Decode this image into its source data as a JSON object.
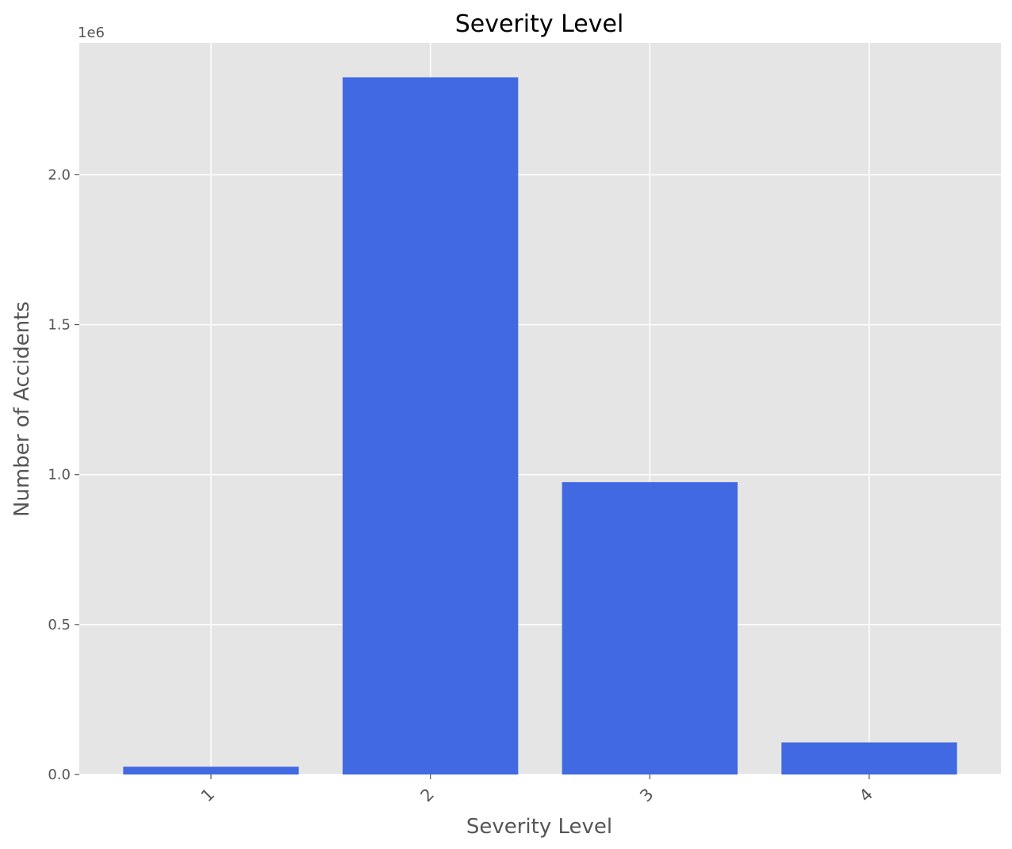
{
  "chart_data": {
    "type": "bar",
    "title": "Severity Level",
    "xlabel": "Severity Level",
    "ylabel": "Number of Accidents",
    "categories": [
      "1",
      "2",
      "3",
      "4"
    ],
    "values": [
      26000,
      2325000,
      975000,
      107000
    ],
    "ylim": [
      0,
      2440000
    ],
    "yticks": [
      0,
      500000,
      1000000,
      1500000,
      2000000
    ],
    "ytick_labels": [
      "0.0",
      "0.5",
      "1.0",
      "1.5",
      "2.0"
    ],
    "y_offset_label": "1e6",
    "grid": true,
    "bar_color": "#4169E1",
    "background_color": "#E5E5E5",
    "grid_color": "#FFFFFF",
    "xtick_rotation": -45
  }
}
